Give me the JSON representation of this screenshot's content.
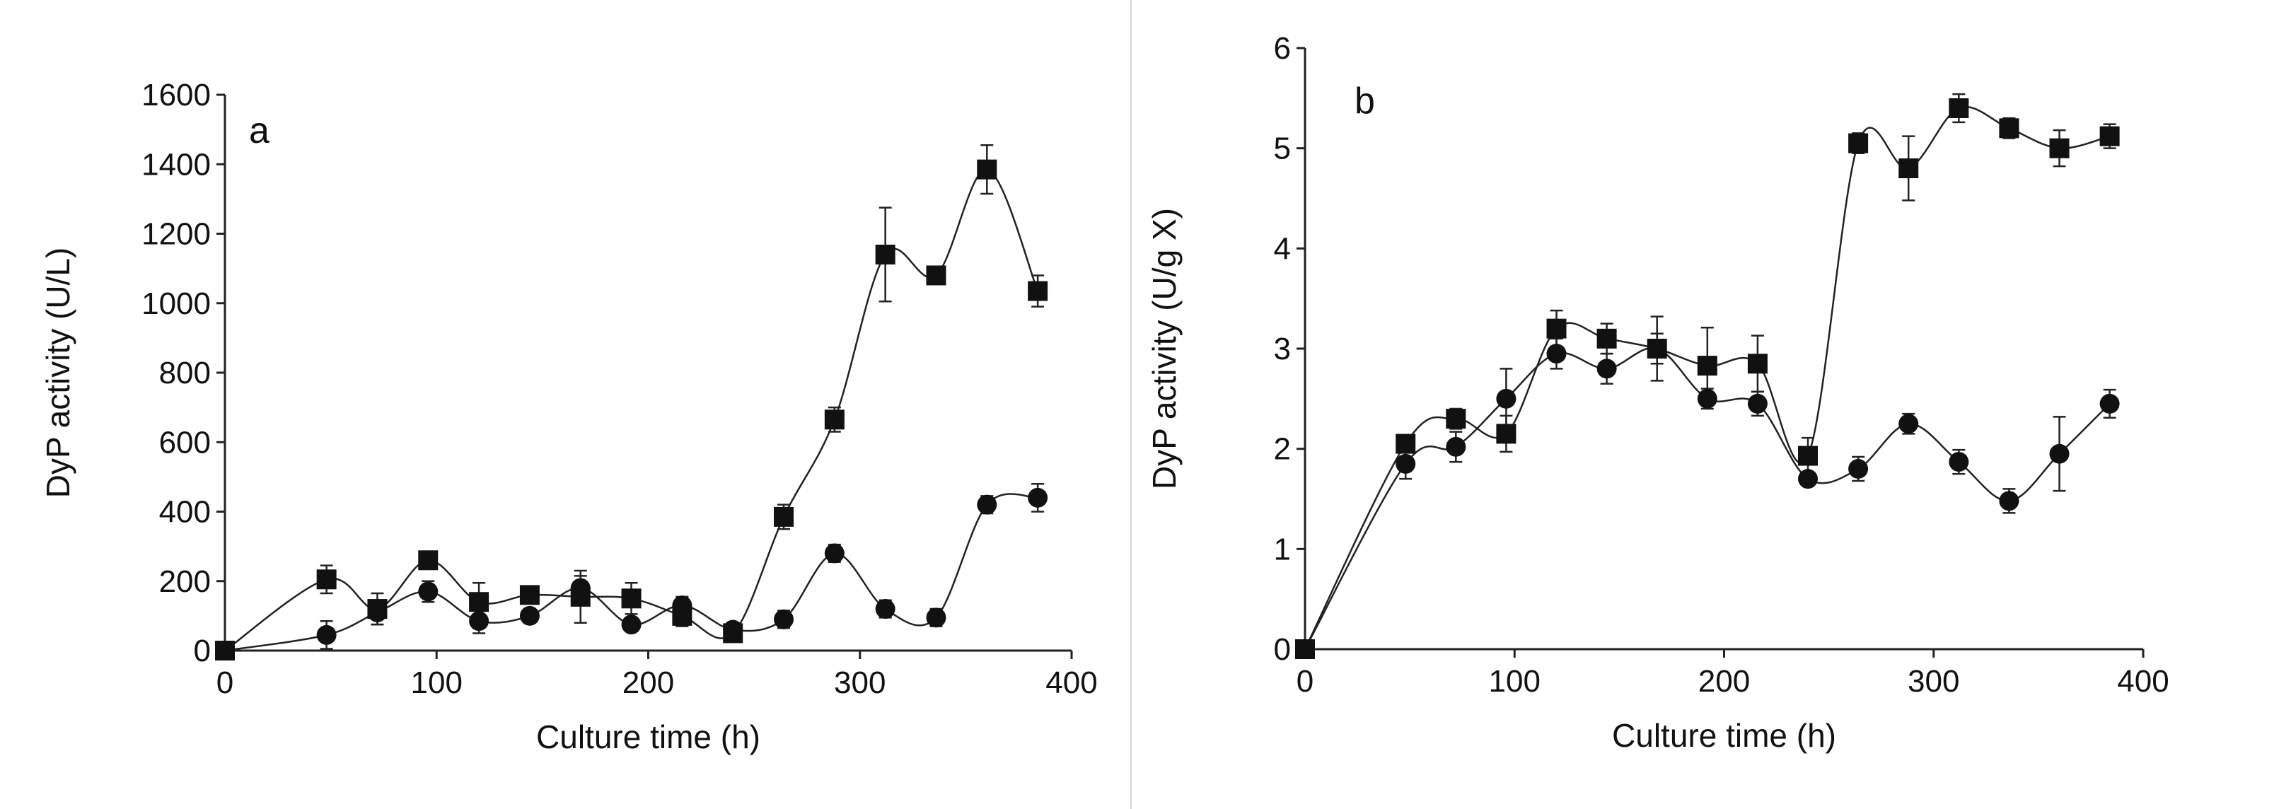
{
  "chart_data": [
    {
      "type": "line",
      "panel_label": "a",
      "xlabel": "Culture time (h)",
      "ylabel": "DyP activity (U/L)",
      "xlim": [
        0,
        400
      ],
      "ylim": [
        0,
        1600
      ],
      "xticks": [
        0,
        100,
        200,
        300,
        400
      ],
      "yticks": [
        0,
        200,
        400,
        600,
        800,
        1000,
        1200,
        1400,
        1600
      ],
      "grid": false,
      "x": [
        0,
        48,
        72,
        96,
        120,
        144,
        168,
        192,
        216,
        240,
        264,
        288,
        312,
        336,
        360,
        384
      ],
      "series": [
        {
          "name": "square",
          "marker": "square",
          "values": [
            0,
            205,
            120,
            260,
            140,
            160,
            155,
            150,
            100,
            50,
            385,
            665,
            1140,
            1080,
            1385,
            1035
          ],
          "errors": [
            0,
            40,
            45,
            25,
            55,
            20,
            75,
            45,
            30,
            25,
            35,
            35,
            135,
            20,
            70,
            45
          ]
        },
        {
          "name": "circle",
          "marker": "circle",
          "values": [
            0,
            45,
            110,
            170,
            85,
            100,
            180,
            75,
            130,
            60,
            90,
            280,
            120,
            95,
            420,
            440
          ],
          "errors": [
            0,
            40,
            35,
            30,
            35,
            20,
            35,
            20,
            25,
            20,
            25,
            25,
            25,
            25,
            25,
            40
          ]
        }
      ]
    },
    {
      "type": "line",
      "panel_label": "b",
      "xlabel": "Culture time (h)",
      "ylabel": "DyP activity (U/g X)",
      "xlim": [
        0,
        400
      ],
      "ylim": [
        0,
        6
      ],
      "xticks": [
        0,
        100,
        200,
        300,
        400
      ],
      "yticks": [
        0,
        1,
        2,
        3,
        4,
        5,
        6
      ],
      "grid": false,
      "x": [
        0,
        48,
        72,
        96,
        120,
        144,
        168,
        192,
        216,
        240,
        264,
        288,
        312,
        336,
        360,
        384
      ],
      "series": [
        {
          "name": "square",
          "marker": "square",
          "values": [
            0,
            2.05,
            2.3,
            2.15,
            3.2,
            3.1,
            3.0,
            2.83,
            2.85,
            1.93,
            5.05,
            4.8,
            5.4,
            5.2,
            5.0,
            5.12
          ],
          "errors": [
            0,
            0.08,
            0.1,
            0.18,
            0.18,
            0.15,
            0.32,
            0.38,
            0.28,
            0.18,
            0.1,
            0.32,
            0.14,
            0.1,
            0.18,
            0.12
          ]
        },
        {
          "name": "circle",
          "marker": "circle",
          "values": [
            0,
            1.85,
            2.02,
            2.5,
            2.95,
            2.8,
            3.0,
            2.5,
            2.45,
            1.7,
            1.8,
            2.25,
            1.87,
            1.48,
            1.95,
            2.45
          ],
          "errors": [
            0,
            0.15,
            0.15,
            0.3,
            0.15,
            0.15,
            0.15,
            0.1,
            0.12,
            0.05,
            0.12,
            0.1,
            0.12,
            0.12,
            0.37,
            0.14
          ]
        }
      ]
    }
  ]
}
